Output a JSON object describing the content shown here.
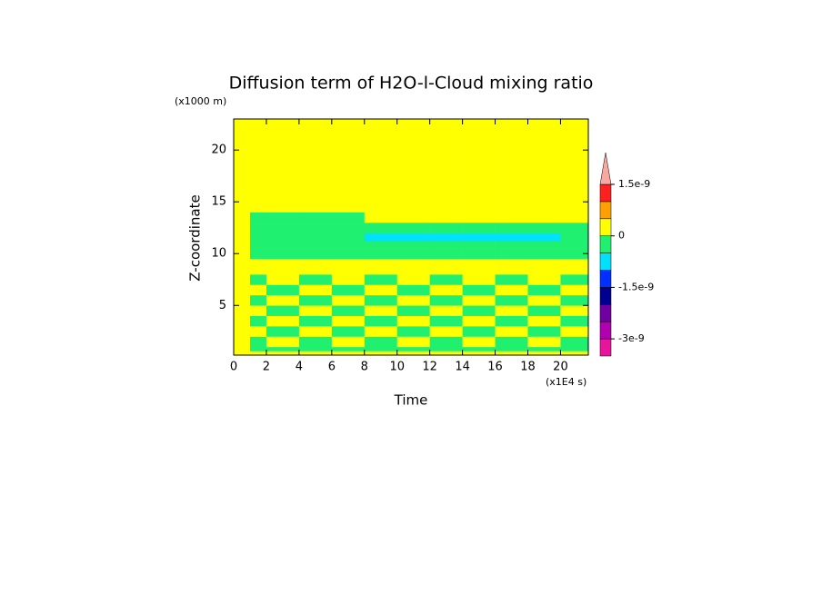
{
  "chart_data": {
    "type": "contour",
    "title": "Diffusion term of H2O-l-Cloud mixing ratio",
    "y_unit": "(x1000 m)",
    "ylabel": "Z-coordinate",
    "xlabel": "Time",
    "x_unit": "(x1E4 s)",
    "xlim": [
      0,
      21.7
    ],
    "ylim": [
      0.2,
      23
    ],
    "xticks": [
      0,
      2,
      4,
      6,
      8,
      10,
      12,
      14,
      16,
      18,
      20
    ],
    "yticks": [
      5,
      10,
      15,
      20
    ],
    "x_edges": [
      0,
      1,
      2,
      4,
      6,
      8,
      10,
      12,
      14,
      16,
      18,
      20,
      21.7
    ],
    "z_edges": [
      0.2,
      0.6,
      1,
      2,
      3,
      4,
      5,
      6,
      7,
      8,
      9.5,
      10.5,
      11.2,
      12,
      13,
      14,
      23
    ],
    "values": [
      [
        1e-10,
        1e-10,
        1e-10,
        1e-10,
        1e-10,
        1e-10,
        1e-10,
        1e-10,
        1e-10,
        1e-10,
        1e-10,
        1e-10
      ],
      [
        1e-10,
        -2e-10,
        -2e-10,
        -2e-10,
        -2e-10,
        -2e-10,
        -2e-10,
        -2e-10,
        -2e-10,
        -2e-10,
        -2e-10,
        -2e-10
      ],
      [
        1e-10,
        -2e-10,
        1e-10,
        -2e-10,
        1e-10,
        -2e-10,
        1e-10,
        -2e-10,
        1e-10,
        -2e-10,
        1e-10,
        -2e-10
      ],
      [
        1e-10,
        1e-10,
        -2e-10,
        1e-10,
        -2e-10,
        1e-10,
        -2e-10,
        1e-10,
        -2e-10,
        1e-10,
        -2e-10,
        1e-10
      ],
      [
        1e-10,
        -2e-10,
        1e-10,
        -2e-10,
        1e-10,
        -2e-10,
        1e-10,
        -2e-10,
        1e-10,
        -2e-10,
        1e-10,
        -2e-10
      ],
      [
        1e-10,
        1e-10,
        -2e-10,
        1e-10,
        -2e-10,
        1e-10,
        -2e-10,
        1e-10,
        -2e-10,
        1e-10,
        -2e-10,
        1e-10
      ],
      [
        1e-10,
        -2e-10,
        1e-10,
        -2e-10,
        1e-10,
        -2e-10,
        1e-10,
        -2e-10,
        1e-10,
        -2e-10,
        1e-10,
        -2e-10
      ],
      [
        1e-10,
        1e-10,
        -2e-10,
        1e-10,
        -2e-10,
        1e-10,
        -2e-10,
        1e-10,
        -2e-10,
        1e-10,
        -2e-10,
        1e-10
      ],
      [
        1e-10,
        -2e-10,
        1e-10,
        -2e-10,
        1e-10,
        -2e-10,
        1e-10,
        -2e-10,
        1e-10,
        -2e-10,
        1e-10,
        -2e-10
      ],
      [
        1e-10,
        1e-10,
        1e-10,
        1e-10,
        1e-10,
        1e-10,
        1e-10,
        1e-10,
        1e-10,
        1e-10,
        1e-10,
        1e-10
      ],
      [
        1e-10,
        -2e-10,
        -2e-10,
        -2e-10,
        -2e-10,
        -2e-10,
        -2e-10,
        -2e-10,
        -2e-10,
        -2e-10,
        -2e-10,
        -2e-10
      ],
      [
        1e-10,
        -2e-10,
        -2e-10,
        -2e-10,
        -2e-10,
        -2e-10,
        -2e-10,
        -2e-10,
        -2e-10,
        -2e-10,
        -2e-10,
        -2e-10
      ],
      [
        1e-10,
        -2e-10,
        -2e-10,
        -2e-10,
        -2e-10,
        -7e-10,
        -7e-10,
        -7e-10,
        -7e-10,
        -7e-10,
        -7e-10,
        -2e-10
      ],
      [
        1e-10,
        -2e-10,
        -2e-10,
        -2e-10,
        -2e-10,
        -2e-10,
        -2e-10,
        -2e-10,
        -2e-10,
        -2e-10,
        -2e-10,
        -2e-10
      ],
      [
        1e-10,
        -2e-10,
        -2e-10,
        -2e-10,
        -2e-10,
        1e-10,
        1e-10,
        1e-10,
        1e-10,
        1e-10,
        1e-10,
        1e-10
      ],
      [
        1e-10,
        1e-10,
        1e-10,
        1e-10,
        1e-10,
        1e-10,
        1e-10,
        1e-10,
        1e-10,
        1e-10,
        1e-10,
        1e-10
      ]
    ],
    "levels": [
      -3.5e-09,
      -3e-09,
      -2.5e-09,
      -2e-09,
      -1.5e-09,
      -1e-09,
      -5e-10,
      0,
      5e-10,
      1e-09,
      1.5e-09
    ],
    "colors": [
      "#e8149c",
      "#b000b0",
      "#7000a0",
      "#000090",
      "#0030ff",
      "#00e0ff",
      "#20f070",
      "#ffff00",
      "#ffa000",
      "#ff2020",
      "#f8a8a0"
    ],
    "cticks": [
      {
        "value": 1.5e-09,
        "label": "1.5e-9"
      },
      0,
      {
        "value": -1.5e-09,
        "label": "-1.5e-9"
      },
      {
        "value": -3e-09,
        "label": "-3e-9"
      }
    ]
  }
}
